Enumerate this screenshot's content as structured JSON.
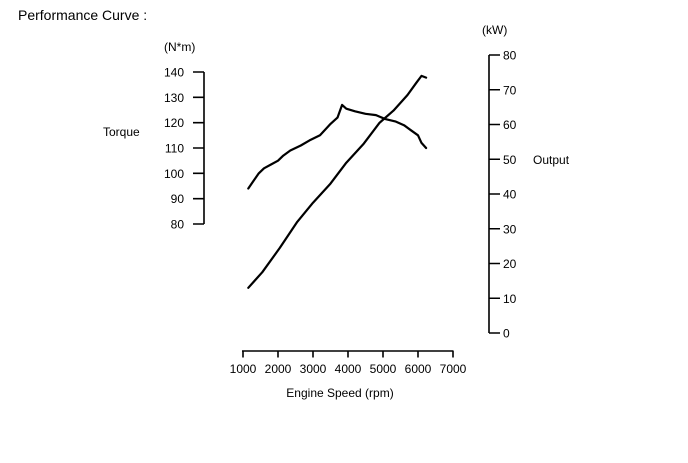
{
  "chart_data": {
    "type": "line",
    "title": "Performance Curve :",
    "xlabel": "Engine Speed (rpm)",
    "grid": false,
    "legend": "none",
    "line_color": "#000000",
    "background": "#ffffff",
    "x_axis": {
      "ticks": [
        1000,
        2000,
        3000,
        4000,
        5000,
        6000,
        7000
      ],
      "range": [
        1000,
        7000
      ]
    },
    "left_axis": {
      "unit": "(N*m)",
      "label": "Torque",
      "ticks": [
        140,
        130,
        120,
        110,
        100,
        90,
        80
      ],
      "range": [
        80,
        140
      ]
    },
    "right_axis": {
      "unit": "(kW)",
      "label": "Output",
      "ticks": [
        80,
        70,
        60,
        50,
        40,
        30,
        20,
        10,
        0
      ],
      "range": [
        0,
        80
      ]
    },
    "series": [
      {
        "name": "Torque",
        "axis": "left",
        "unit": "N*m",
        "x": [
          1150,
          1300,
          1450,
          1600,
          1800,
          2000,
          2150,
          2350,
          2650,
          2900,
          3200,
          3500,
          3700,
          3830,
          3950,
          4200,
          4500,
          4800,
          5050,
          5350,
          5600,
          5800,
          6000,
          6100,
          6230
        ],
        "values": [
          94,
          97,
          100,
          102,
          103.5,
          105,
          107,
          109,
          111,
          113,
          115,
          119.5,
          122,
          127,
          125.5,
          124.5,
          123.5,
          123,
          121.5,
          120.5,
          119,
          117,
          115,
          112,
          110
        ]
      },
      {
        "name": "Output",
        "axis": "right",
        "unit": "kW",
        "x": [
          1150,
          1550,
          2050,
          2550,
          3000,
          3500,
          3950,
          4450,
          4900,
          5300,
          5700,
          5950,
          6100,
          6230
        ],
        "values": [
          13,
          17.5,
          24.5,
          32,
          37.5,
          43,
          49,
          54.5,
          60.5,
          64,
          68.5,
          72,
          74,
          73.5
        ]
      }
    ]
  }
}
